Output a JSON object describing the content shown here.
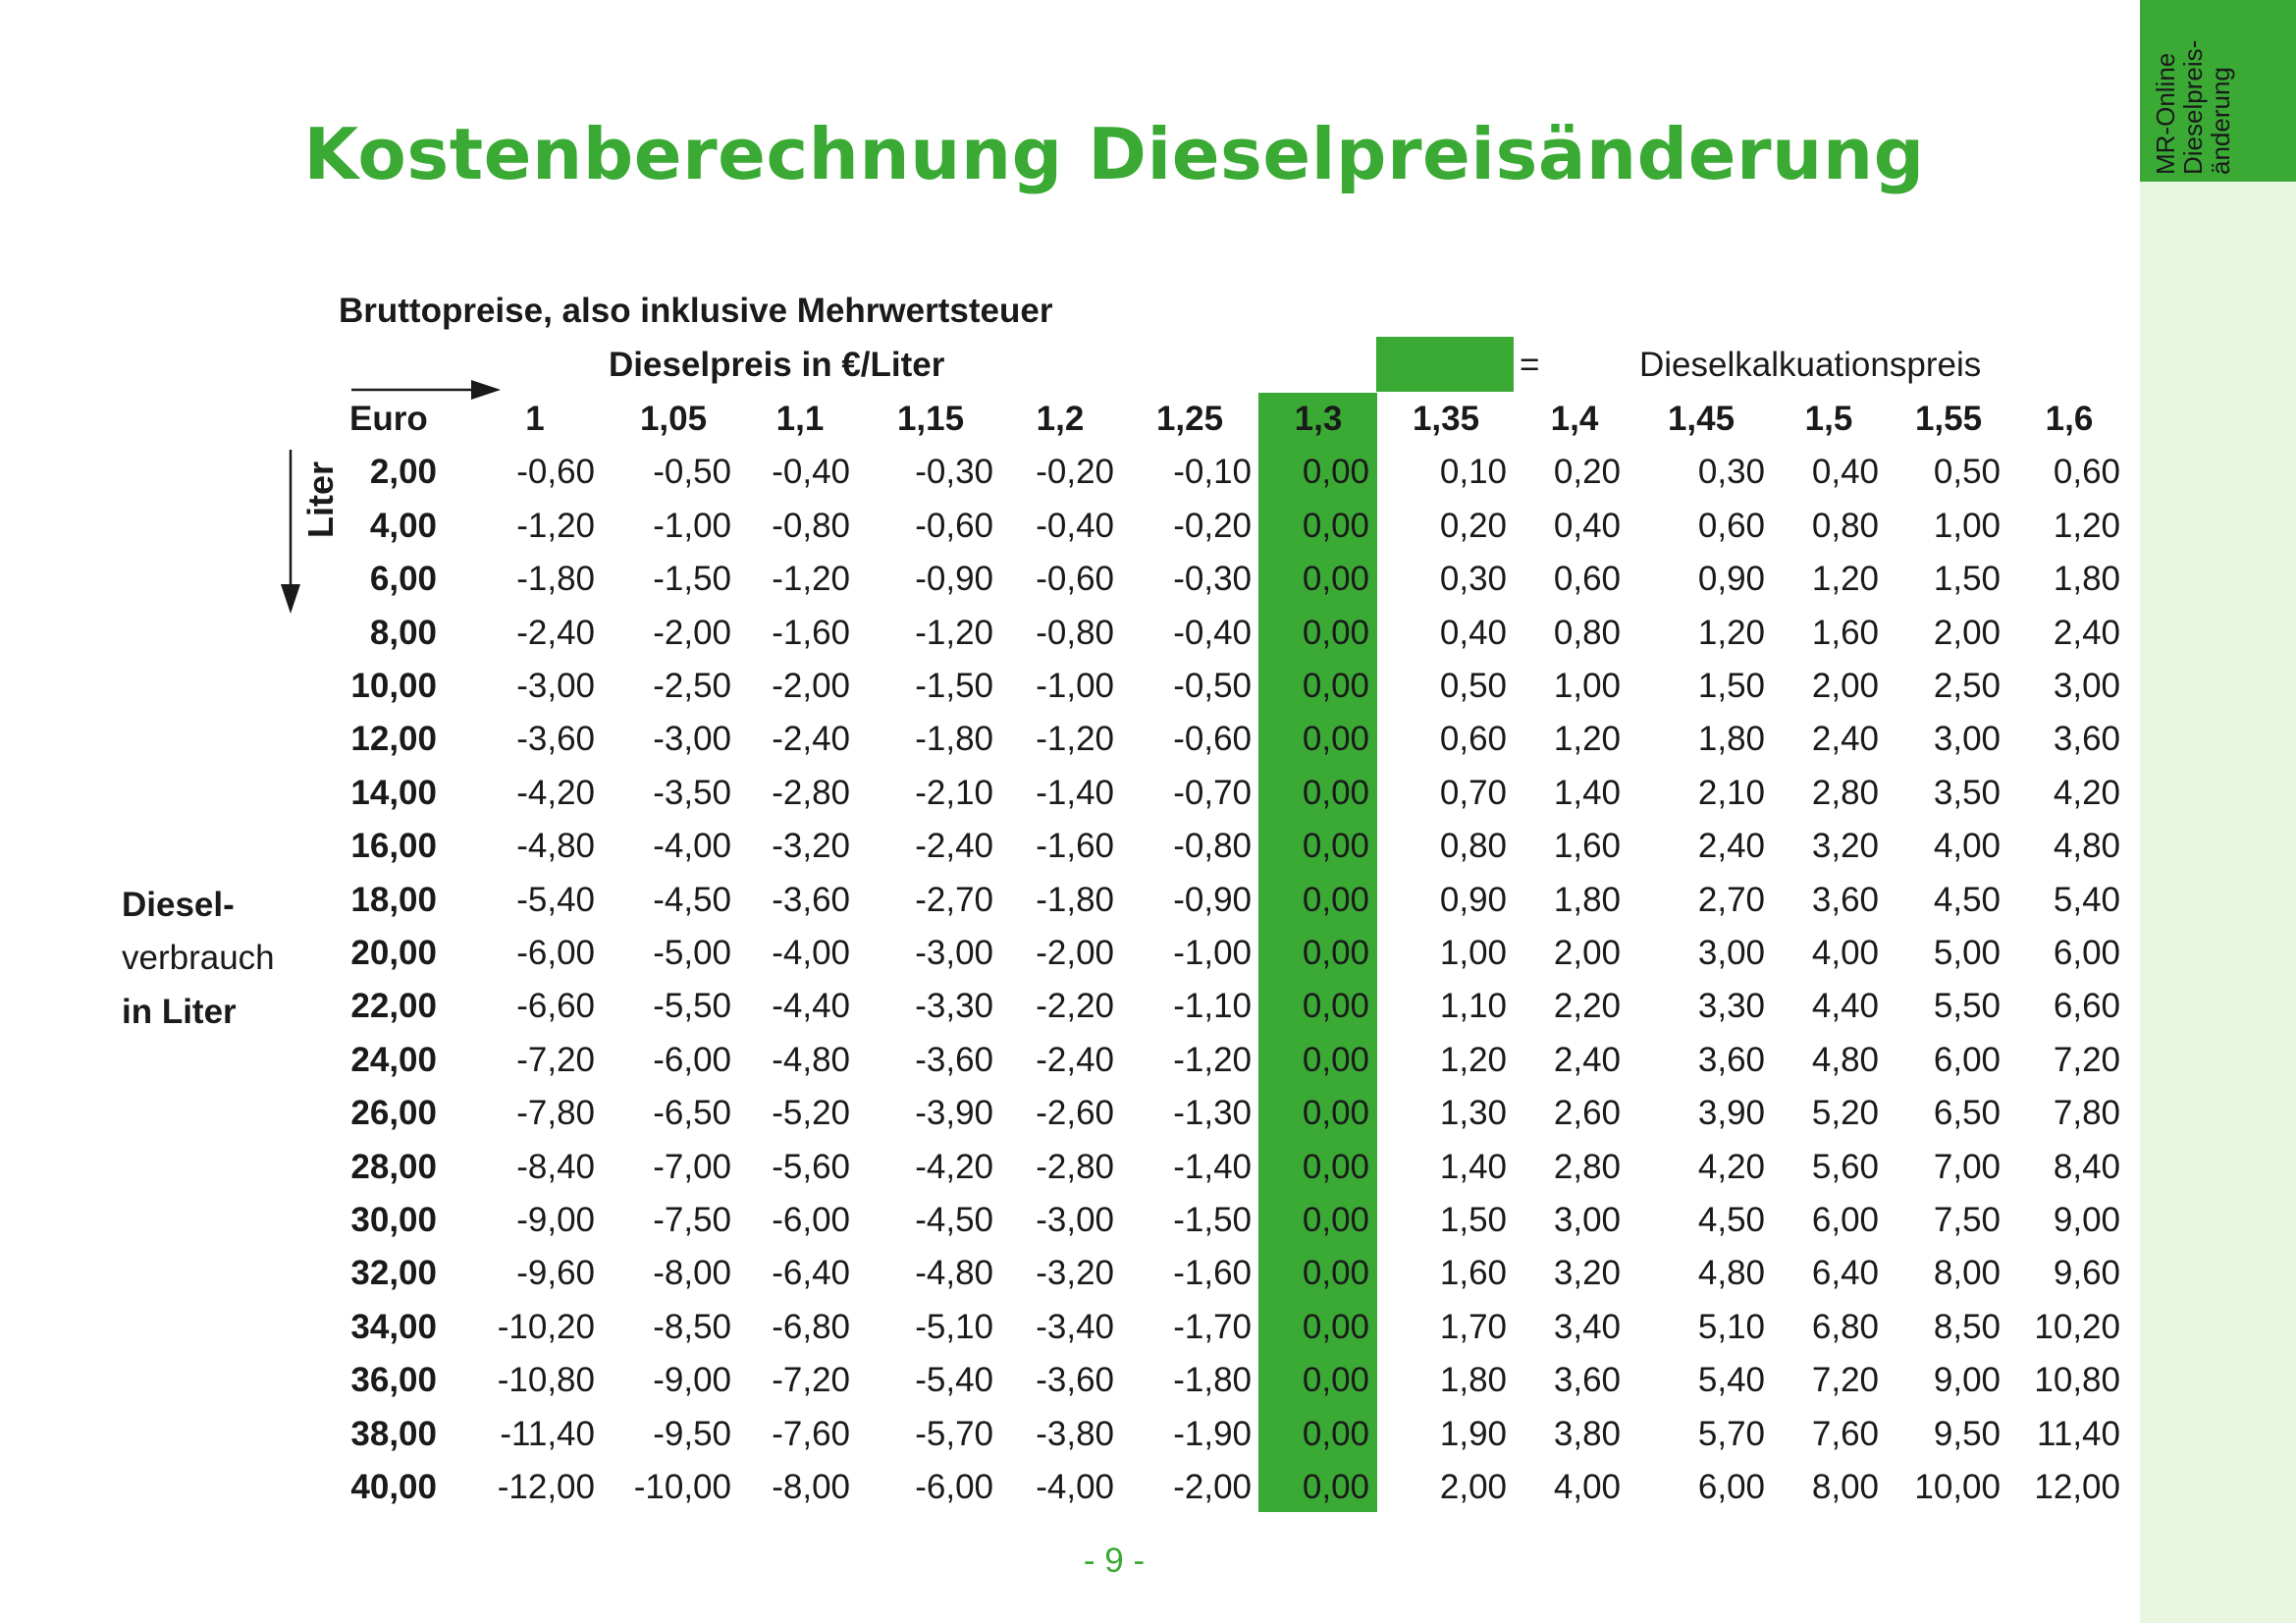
{
  "side_tab": {
    "lines": [
      "MR-Online",
      "Dieselpreis-",
      "änderung"
    ]
  },
  "title": "Kostenberechnung Dieselpreisänderung",
  "subtitle": "Bruttopreise, also inklusive Mehrwertsteuer",
  "price_label": "Dieselpreis in €/Liter",
  "legend": {
    "equals": "=",
    "label": "Dieselkalkuationspreis",
    "color": "#3aaa35"
  },
  "axis_vertical_label": "Liter",
  "diesel_label": {
    "line1": "Diesel-",
    "line2": "verbrauch",
    "line3": "in Liter"
  },
  "table": {
    "corner": "Euro",
    "columns": [
      "1",
      "1,05",
      "1,1",
      "1,15",
      "1,2",
      "1,25",
      "1,3",
      "1,35",
      "1,4",
      "1,45",
      "1,5",
      "1,55",
      "1,6"
    ],
    "highlight_column": 6,
    "rows": [
      {
        "liters": "2,00",
        "values": [
          "-0,60",
          "-0,50",
          "-0,40",
          "-0,30",
          "-0,20",
          "-0,10",
          "0,00",
          "0,10",
          "0,20",
          "0,30",
          "0,40",
          "0,50",
          "0,60"
        ]
      },
      {
        "liters": "4,00",
        "values": [
          "-1,20",
          "-1,00",
          "-0,80",
          "-0,60",
          "-0,40",
          "-0,20",
          "0,00",
          "0,20",
          "0,40",
          "0,60",
          "0,80",
          "1,00",
          "1,20"
        ]
      },
      {
        "liters": "6,00",
        "values": [
          "-1,80",
          "-1,50",
          "-1,20",
          "-0,90",
          "-0,60",
          "-0,30",
          "0,00",
          "0,30",
          "0,60",
          "0,90",
          "1,20",
          "1,50",
          "1,80"
        ]
      },
      {
        "liters": "8,00",
        "values": [
          "-2,40",
          "-2,00",
          "-1,60",
          "-1,20",
          "-0,80",
          "-0,40",
          "0,00",
          "0,40",
          "0,80",
          "1,20",
          "1,60",
          "2,00",
          "2,40"
        ]
      },
      {
        "liters": "10,00",
        "values": [
          "-3,00",
          "-2,50",
          "-2,00",
          "-1,50",
          "-1,00",
          "-0,50",
          "0,00",
          "0,50",
          "1,00",
          "1,50",
          "2,00",
          "2,50",
          "3,00"
        ]
      },
      {
        "liters": "12,00",
        "values": [
          "-3,60",
          "-3,00",
          "-2,40",
          "-1,80",
          "-1,20",
          "-0,60",
          "0,00",
          "0,60",
          "1,20",
          "1,80",
          "2,40",
          "3,00",
          "3,60"
        ]
      },
      {
        "liters": "14,00",
        "values": [
          "-4,20",
          "-3,50",
          "-2,80",
          "-2,10",
          "-1,40",
          "-0,70",
          "0,00",
          "0,70",
          "1,40",
          "2,10",
          "2,80",
          "3,50",
          "4,20"
        ]
      },
      {
        "liters": "16,00",
        "values": [
          "-4,80",
          "-4,00",
          "-3,20",
          "-2,40",
          "-1,60",
          "-0,80",
          "0,00",
          "0,80",
          "1,60",
          "2,40",
          "3,20",
          "4,00",
          "4,80"
        ]
      },
      {
        "liters": "18,00",
        "values": [
          "-5,40",
          "-4,50",
          "-3,60",
          "-2,70",
          "-1,80",
          "-0,90",
          "0,00",
          "0,90",
          "1,80",
          "2,70",
          "3,60",
          "4,50",
          "5,40"
        ]
      },
      {
        "liters": "20,00",
        "values": [
          "-6,00",
          "-5,00",
          "-4,00",
          "-3,00",
          "-2,00",
          "-1,00",
          "0,00",
          "1,00",
          "2,00",
          "3,00",
          "4,00",
          "5,00",
          "6,00"
        ]
      },
      {
        "liters": "22,00",
        "values": [
          "-6,60",
          "-5,50",
          "-4,40",
          "-3,30",
          "-2,20",
          "-1,10",
          "0,00",
          "1,10",
          "2,20",
          "3,30",
          "4,40",
          "5,50",
          "6,60"
        ]
      },
      {
        "liters": "24,00",
        "values": [
          "-7,20",
          "-6,00",
          "-4,80",
          "-3,60",
          "-2,40",
          "-1,20",
          "0,00",
          "1,20",
          "2,40",
          "3,60",
          "4,80",
          "6,00",
          "7,20"
        ]
      },
      {
        "liters": "26,00",
        "values": [
          "-7,80",
          "-6,50",
          "-5,20",
          "-3,90",
          "-2,60",
          "-1,30",
          "0,00",
          "1,30",
          "2,60",
          "3,90",
          "5,20",
          "6,50",
          "7,80"
        ]
      },
      {
        "liters": "28,00",
        "values": [
          "-8,40",
          "-7,00",
          "-5,60",
          "-4,20",
          "-2,80",
          "-1,40",
          "0,00",
          "1,40",
          "2,80",
          "4,20",
          "5,60",
          "7,00",
          "8,40"
        ]
      },
      {
        "liters": "30,00",
        "values": [
          "-9,00",
          "-7,50",
          "-6,00",
          "-4,50",
          "-3,00",
          "-1,50",
          "0,00",
          "1,50",
          "3,00",
          "4,50",
          "6,00",
          "7,50",
          "9,00"
        ]
      },
      {
        "liters": "32,00",
        "values": [
          "-9,60",
          "-8,00",
          "-6,40",
          "-4,80",
          "-3,20",
          "-1,60",
          "0,00",
          "1,60",
          "3,20",
          "4,80",
          "6,40",
          "8,00",
          "9,60"
        ]
      },
      {
        "liters": "34,00",
        "values": [
          "-10,20",
          "-8,50",
          "-6,80",
          "-5,10",
          "-3,40",
          "-1,70",
          "0,00",
          "1,70",
          "3,40",
          "5,10",
          "6,80",
          "8,50",
          "10,20"
        ]
      },
      {
        "liters": "36,00",
        "values": [
          "-10,80",
          "-9,00",
          "-7,20",
          "-5,40",
          "-3,60",
          "-1,80",
          "0,00",
          "1,80",
          "3,60",
          "5,40",
          "7,20",
          "9,00",
          "10,80"
        ]
      },
      {
        "liters": "38,00",
        "values": [
          "-11,40",
          "-9,50",
          "-7,60",
          "-5,70",
          "-3,80",
          "-1,90",
          "0,00",
          "1,90",
          "3,80",
          "5,70",
          "7,60",
          "9,50",
          "11,40"
        ]
      },
      {
        "liters": "40,00",
        "values": [
          "-12,00",
          "-10,00",
          "-8,00",
          "-6,00",
          "-4,00",
          "-2,00",
          "0,00",
          "2,00",
          "4,00",
          "6,00",
          "8,00",
          "10,00",
          "12,00"
        ]
      }
    ]
  },
  "page_number": "- 9 -"
}
